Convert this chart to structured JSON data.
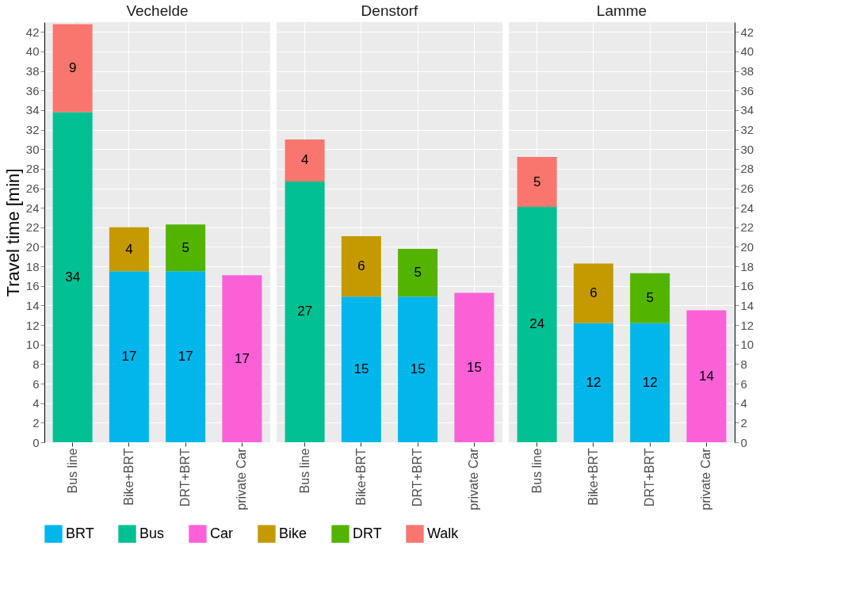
{
  "chart_data": [
    {
      "type": "bar",
      "stacked": true,
      "title": "Vechelde",
      "ylabel": "Travel time [min]",
      "categories": [
        "Bus line",
        "Bike+BRT",
        "DRT+BRT",
        "private Car"
      ],
      "ylim": [
        0,
        43
      ],
      "yticks": [
        0,
        2,
        4,
        6,
        8,
        10,
        12,
        14,
        16,
        18,
        20,
        22,
        24,
        26,
        28,
        30,
        32,
        34,
        36,
        38,
        40,
        42
      ],
      "grid": true,
      "legend": "bottom",
      "series": [
        {
          "name": "BRT",
          "color": "#00b6eb",
          "values": [
            null,
            17.5,
            17.5,
            null
          ],
          "value_labels": [
            null,
            "17",
            "17",
            null
          ]
        },
        {
          "name": "Bus",
          "color": "#00c094",
          "values": [
            33.8,
            null,
            null,
            null
          ],
          "value_labels": [
            "34",
            null,
            null,
            null
          ]
        },
        {
          "name": "Car",
          "color": "#fb61d7",
          "values": [
            null,
            null,
            null,
            17.1
          ],
          "value_labels": [
            null,
            null,
            null,
            "17"
          ]
        },
        {
          "name": "Bike",
          "color": "#c49a00",
          "values": [
            null,
            4.5,
            null,
            null
          ],
          "value_labels": [
            null,
            "4",
            null,
            null
          ]
        },
        {
          "name": "DRT",
          "color": "#53b400",
          "values": [
            null,
            null,
            4.8,
            null
          ],
          "value_labels": [
            null,
            null,
            "5",
            null
          ]
        },
        {
          "name": "Walk",
          "color": "#f8766d",
          "values": [
            9.0,
            null,
            null,
            null
          ],
          "value_labels": [
            "9",
            null,
            null,
            null
          ]
        }
      ]
    },
    {
      "type": "bar",
      "stacked": true,
      "title": "Denstorf",
      "categories": [
        "Bus line",
        "Bike+BRT",
        "DRT+BRT",
        "private Car"
      ],
      "ylim": [
        0,
        43
      ],
      "yticks": [
        0,
        2,
        4,
        6,
        8,
        10,
        12,
        14,
        16,
        18,
        20,
        22,
        24,
        26,
        28,
        30,
        32,
        34,
        36,
        38,
        40,
        42
      ],
      "grid": true,
      "tick_labels": "x",
      "series": [
        {
          "name": "BRT",
          "color": "#00b6eb",
          "values": [
            null,
            14.9,
            14.9,
            null
          ],
          "value_labels": [
            null,
            "15",
            "15",
            null
          ]
        },
        {
          "name": "Bus",
          "color": "#00c094",
          "values": [
            26.7,
            null,
            null,
            null
          ],
          "value_labels": [
            "27",
            null,
            null,
            null
          ]
        },
        {
          "name": "Car",
          "color": "#fb61d7",
          "values": [
            null,
            null,
            null,
            15.3
          ],
          "value_labels": [
            null,
            null,
            null,
            "15"
          ]
        },
        {
          "name": "Bike",
          "color": "#c49a00",
          "values": [
            null,
            6.2,
            null,
            null
          ],
          "value_labels": [
            null,
            "6",
            null,
            null
          ]
        },
        {
          "name": "DRT",
          "color": "#53b400",
          "values": [
            null,
            null,
            4.9,
            null
          ],
          "value_labels": [
            null,
            null,
            "5",
            null
          ]
        },
        {
          "name": "Walk",
          "color": "#f8766d",
          "values": [
            4.3,
            null,
            null,
            null
          ],
          "value_labels": [
            "4",
            null,
            null,
            null
          ]
        }
      ]
    },
    {
      "type": "bar",
      "stacked": true,
      "title": "Lamme",
      "categories": [
        "Bus line",
        "Bike+BRT",
        "DRT+BRT",
        "private Car"
      ],
      "ylim": [
        0,
        43
      ],
      "yticks": [
        0,
        2,
        4,
        6,
        8,
        10,
        12,
        14,
        16,
        18,
        20,
        22,
        24,
        26,
        28,
        30,
        32,
        34,
        36,
        38,
        40,
        42
      ],
      "grid": true,
      "series": [
        {
          "name": "BRT",
          "color": "#00b6eb",
          "values": [
            null,
            12.2,
            12.2,
            null
          ],
          "value_labels": [
            null,
            "12",
            "12",
            null
          ]
        },
        {
          "name": "Bus",
          "color": "#00c094",
          "values": [
            24.1,
            null,
            null,
            null
          ],
          "value_labels": [
            "24",
            null,
            null,
            null
          ]
        },
        {
          "name": "Car",
          "color": "#fb61d7",
          "values": [
            null,
            null,
            null,
            13.5
          ],
          "value_labels": [
            null,
            null,
            null,
            "14"
          ]
        },
        {
          "name": "Bike",
          "color": "#c49a00",
          "values": [
            null,
            6.1,
            null,
            null
          ],
          "value_labels": [
            null,
            "6",
            null,
            null
          ]
        },
        {
          "name": "DRT",
          "color": "#53b400",
          "values": [
            null,
            null,
            5.1,
            null
          ],
          "value_labels": [
            null,
            null,
            "5",
            null
          ]
        },
        {
          "name": "Walk",
          "color": "#f8766d",
          "values": [
            5.1,
            null,
            null,
            null
          ],
          "value_labels": [
            "5",
            null,
            null,
            null
          ]
        }
      ]
    }
  ]
}
